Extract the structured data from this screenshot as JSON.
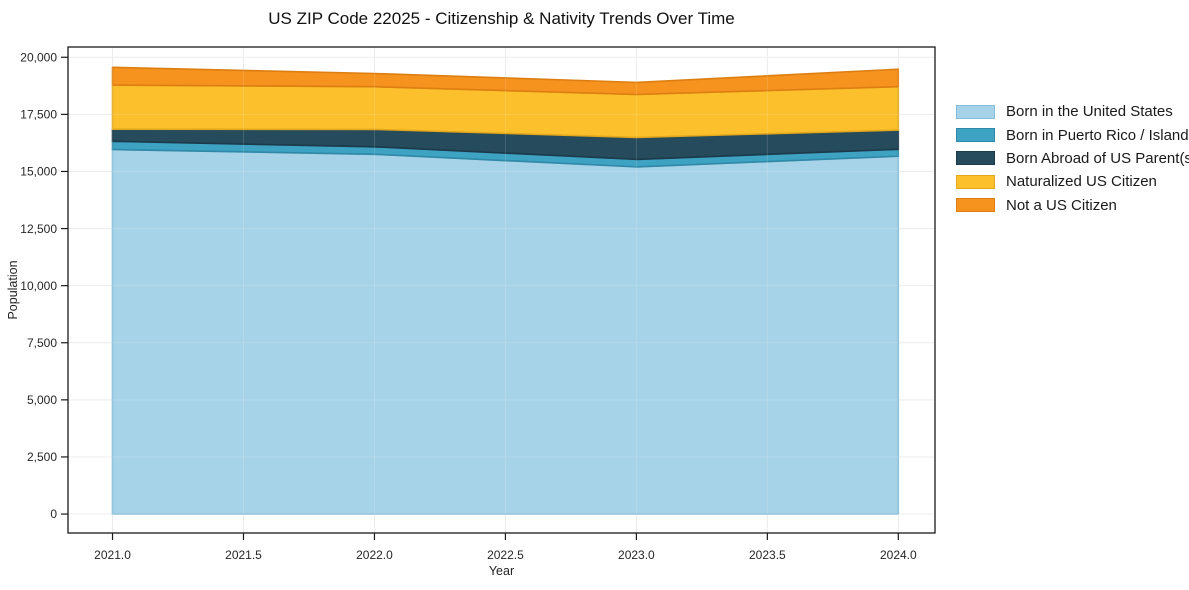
{
  "chart_data": {
    "type": "area",
    "stacked": true,
    "title": "US ZIP Code 22025 - Citizenship & Nativity Trends Over Time",
    "xlabel": "Year",
    "ylabel": "Population",
    "x": [
      2021,
      2022,
      2023,
      2024
    ],
    "series": [
      {
        "name": "Born in the United States",
        "color": "#A7D3E8",
        "edge_color": "#85BCD9",
        "values": [
          15960,
          15750,
          15200,
          15670
        ]
      },
      {
        "name": "Born in Puerto Rico / Islands",
        "color": "#3EA2C2",
        "edge_color": "#2F89A6",
        "values": [
          360,
          330,
          330,
          300
        ]
      },
      {
        "name": "Born Abroad of US Parent(s)",
        "color": "#264B5D",
        "edge_color": "#1C3A49",
        "values": [
          530,
          760,
          960,
          840
        ]
      },
      {
        "name": "Naturalized US Citizen",
        "color": "#FCC02D",
        "edge_color": "#E3A81B",
        "values": [
          1930,
          1870,
          1880,
          1900
        ]
      },
      {
        "name": "Not a US Citizen",
        "color": "#F6921E",
        "edge_color": "#DD7E11",
        "values": [
          780,
          580,
          530,
          770
        ]
      }
    ],
    "totals": [
      19560,
      19290,
      18900,
      19480
    ],
    "xlim": [
      2020.83,
      2024.14
    ],
    "ylim": [
      -830,
      20450
    ],
    "xticks": [
      2021.0,
      2021.5,
      2022.0,
      2022.5,
      2023.0,
      2023.5,
      2024.0
    ],
    "yticks": [
      0,
      2500,
      5000,
      7500,
      10000,
      12500,
      15000,
      17500,
      20000
    ],
    "grid": true,
    "grid_color": "#e9e9e9",
    "spine_color": "#1a1a1a",
    "legend_position": "right-outside"
  }
}
